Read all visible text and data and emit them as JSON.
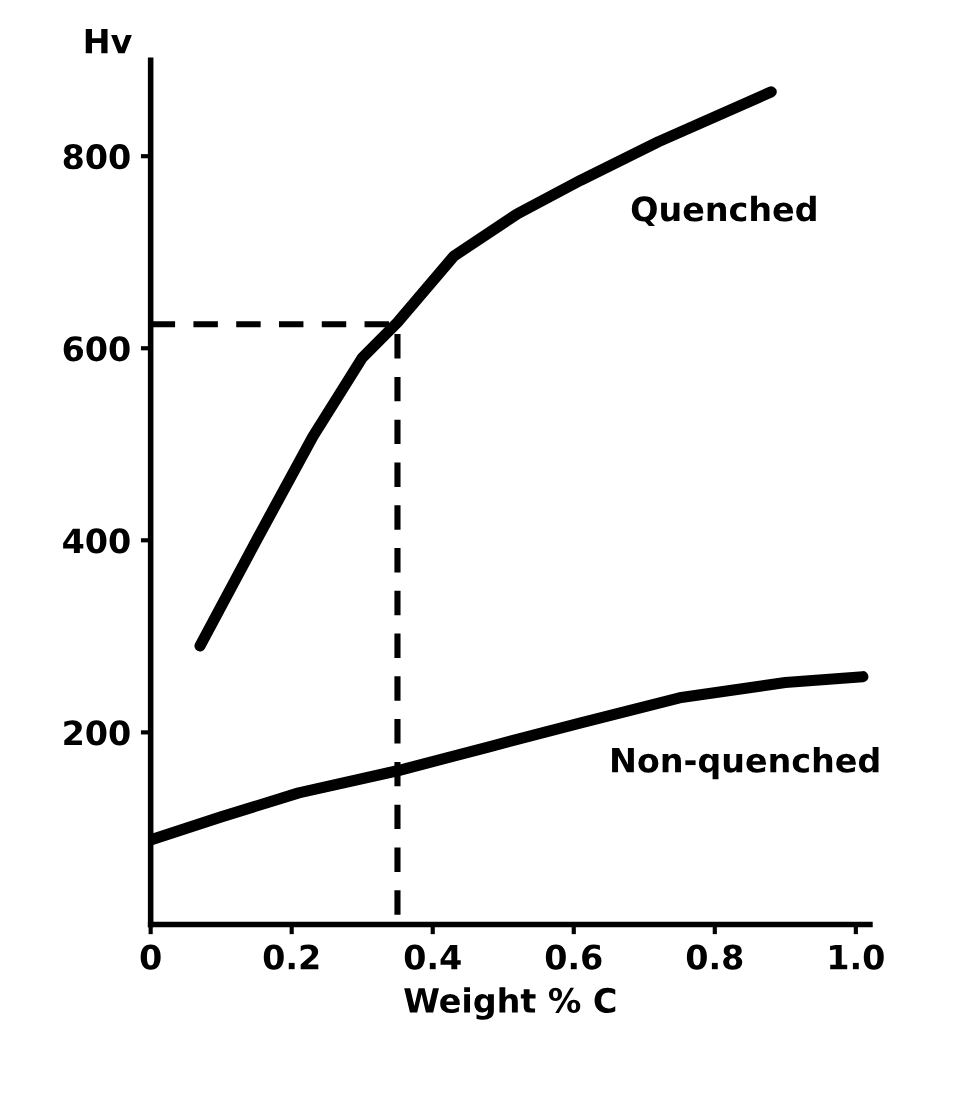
{
  "chart_data": {
    "type": "line",
    "xlabel": "Weight % C",
    "ylabel": "Hv",
    "xlim": [
      0,
      1.02
    ],
    "ylim": [
      0,
      900
    ],
    "xticks": [
      0,
      0.2,
      0.4,
      0.6,
      0.8,
      {
        "value": 1.0,
        "label": "1.0"
      }
    ],
    "yticks": [
      200,
      400,
      600,
      800
    ],
    "grid": false,
    "legend": false,
    "series": [
      {
        "name": "Quenched",
        "color": "#000000",
        "x": [
          0.07,
          0.15,
          0.23,
          0.3,
          0.35,
          0.43,
          0.52,
          0.61,
          0.72,
          0.88
        ],
        "values": [
          290,
          400,
          508,
          590,
          627,
          696,
          740,
          775,
          815,
          867
        ]
      },
      {
        "name": "Non-quenched",
        "color": "#000000",
        "x": [
          0.0,
          0.1,
          0.21,
          0.35,
          0.48,
          0.61,
          0.75,
          0.9,
          1.01
        ],
        "values": [
          88,
          112,
          137,
          160,
          185,
          210,
          236,
          252,
          258
        ]
      },
      {
        "color": "#000000",
        "line_style": "dashed",
        "x": [
          0,
          0.35,
          0.35
        ],
        "values": [
          625,
          625,
          0
        ]
      }
    ]
  }
}
